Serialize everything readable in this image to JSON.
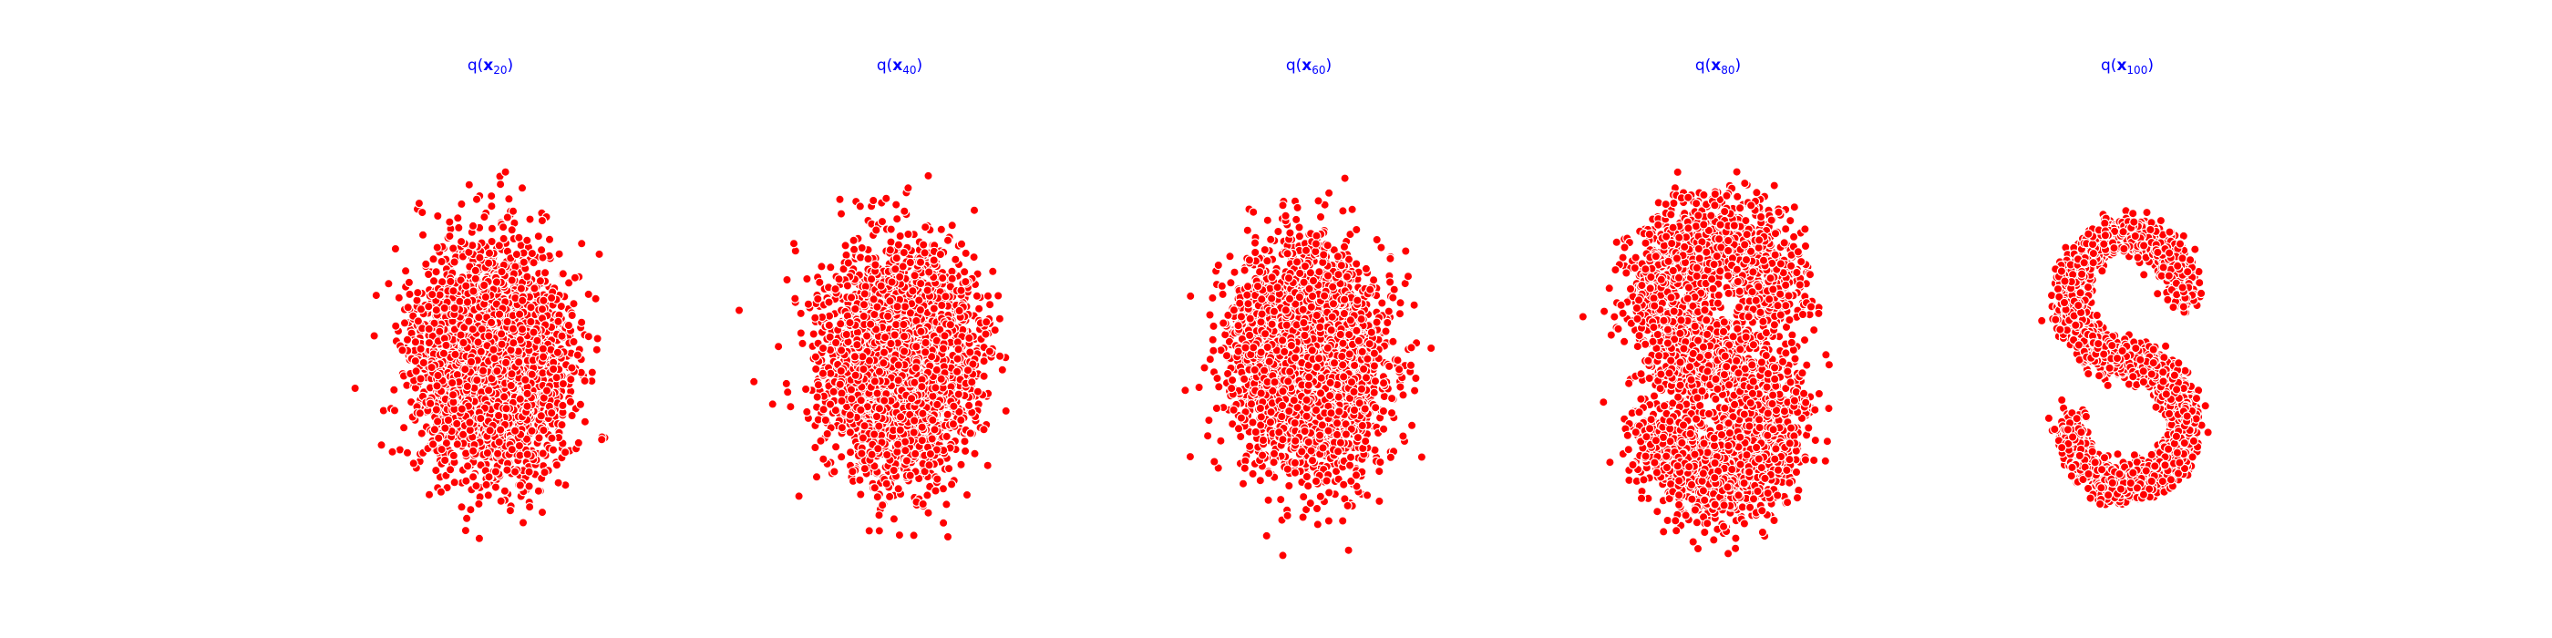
{
  "chart_data": [
    {
      "type": "scatter",
      "title": {
        "prefix": "q(",
        "var": "x",
        "sub": "20",
        "suffix": ")"
      },
      "axes_visible": false,
      "grid": false,
      "marker_color": "#ff0000",
      "marker_edge_color": "#ffffff",
      "title_color": "#0000ff",
      "shape": "gaussian",
      "approx_points": 3200,
      "x_range": [
        -3.6,
        3.6
      ],
      "y_range": [
        -4.4,
        4.4
      ]
    },
    {
      "type": "scatter",
      "title": {
        "prefix": "q(",
        "var": "x",
        "sub": "40",
        "suffix": ")"
      },
      "axes_visible": false,
      "grid": false,
      "marker_color": "#ff0000",
      "marker_edge_color": "#ffffff",
      "title_color": "#0000ff",
      "shape": "gaussian",
      "approx_points": 3200,
      "x_range": [
        -3.6,
        3.6
      ],
      "y_range": [
        -4.4,
        4.4
      ]
    },
    {
      "type": "scatter",
      "title": {
        "prefix": "q(",
        "var": "x",
        "sub": "60",
        "suffix": ")"
      },
      "axes_visible": false,
      "grid": false,
      "marker_color": "#ff0000",
      "marker_edge_color": "#ffffff",
      "title_color": "#0000ff",
      "shape": "gaussian",
      "approx_points": 3200,
      "x_range": [
        -3.6,
        3.6
      ],
      "y_range": [
        -4.4,
        4.4
      ]
    },
    {
      "type": "scatter",
      "title": {
        "prefix": "q(",
        "var": "x",
        "sub": "80",
        "suffix": ")"
      },
      "axes_visible": false,
      "grid": false,
      "marker_color": "#ff0000",
      "marker_edge_color": "#ffffff",
      "title_color": "#0000ff",
      "shape": "blurred-s",
      "approx_points": 3200,
      "x_range": [
        -3.6,
        3.6
      ],
      "y_range": [
        -4.4,
        4.4
      ]
    },
    {
      "type": "scatter",
      "title": {
        "prefix": "q(",
        "var": "x",
        "sub": "100",
        "suffix": ")"
      },
      "axes_visible": false,
      "grid": false,
      "marker_color": "#ff0000",
      "marker_edge_color": "#ffffff",
      "title_color": "#0000ff",
      "shape": "s-curve",
      "approx_points": 3200,
      "x_range": [
        -3.6,
        3.6
      ],
      "y_range": [
        -4.4,
        4.4
      ]
    }
  ]
}
